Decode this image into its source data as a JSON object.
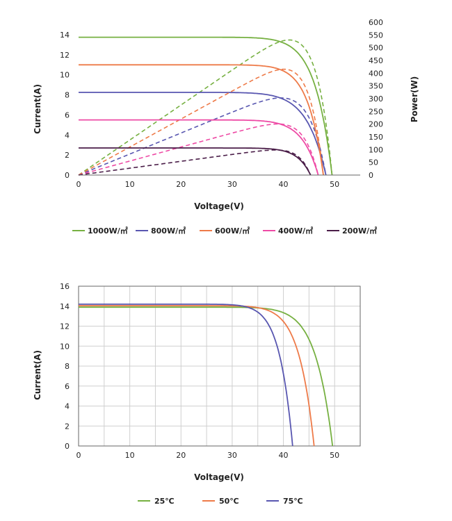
{
  "colors": {
    "1000": "#76b041",
    "800": "#5856b0",
    "600": "#ee7a48",
    "400": "#ee4aa5",
    "200": "#4a1d48",
    "25": "#76b041",
    "50": "#ee7a48",
    "75": "#5856b0"
  },
  "chart_data": [
    {
      "type": "line",
      "title": "",
      "xlabel": "Voltage(V)",
      "ylabel": "Current(A)",
      "y2label": "Power(W)",
      "xlim": [
        0,
        55
      ],
      "ylim": [
        0,
        14
      ],
      "y2lim": [
        0,
        600
      ],
      "xticks": [
        "0",
        "10",
        "20",
        "30",
        "40",
        "50"
      ],
      "yticks": [
        "0",
        "2",
        "4",
        "6",
        "8",
        "10",
        "12",
        "14"
      ],
      "y2ticks": [
        "0",
        "50",
        "100",
        "150",
        "200",
        "250",
        "300",
        "350",
        "400",
        "450",
        "500",
        "550",
        "600"
      ],
      "grid": false,
      "legend": "bottom",
      "series": [
        {
          "name": "1000W/㎡",
          "color_key": "1000",
          "isc": 13.75,
          "voc": 49.5,
          "n": 2.5
        },
        {
          "name": "800W/㎡",
          "color_key": "800",
          "isc": 8.25,
          "voc": 48.3,
          "n": 2.2
        },
        {
          "name": "600W/㎡",
          "color_key": "600",
          "isc": 11.0,
          "voc": 47.8,
          "n": 2.7
        },
        {
          "name": "400W/㎡",
          "color_key": "400",
          "isc": 5.5,
          "voc": 46.8,
          "n": 2.5
        },
        {
          "name": "200W/㎡",
          "color_key": "200",
          "isc": 2.7,
          "voc": 45.3,
          "n": 3.0
        }
      ]
    },
    {
      "type": "line",
      "title": "",
      "xlabel": "Voltage(V)",
      "ylabel": "Current(A)",
      "xlim": [
        0,
        55
      ],
      "ylim": [
        0,
        16
      ],
      "xticks": [
        "0",
        "10",
        "20",
        "30",
        "40",
        "50"
      ],
      "yticks": [
        "0",
        "2",
        "4",
        "6",
        "8",
        "10",
        "12",
        "14",
        "16"
      ],
      "grid": true,
      "legend": "bottom",
      "series": [
        {
          "name": "25℃",
          "color_key": "25",
          "isc": 13.9,
          "voc": 49.6,
          "n": 2.5
        },
        {
          "name": "50℃",
          "color_key": "50",
          "isc": 14.05,
          "voc": 46.0,
          "n": 2.6
        },
        {
          "name": "75℃",
          "color_key": "75",
          "isc": 14.2,
          "voc": 41.8,
          "n": 2.7
        }
      ]
    }
  ]
}
